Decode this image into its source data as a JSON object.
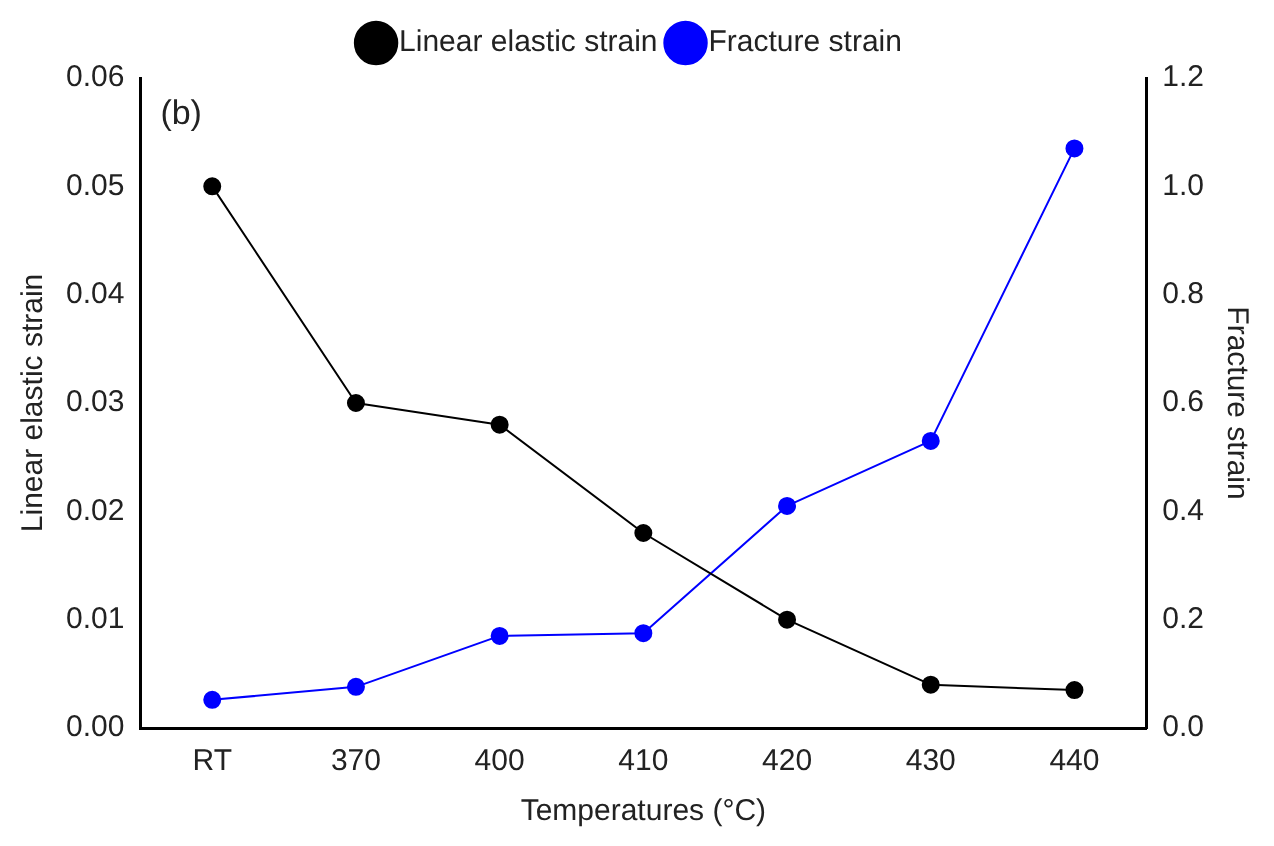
{
  "chart_data": {
    "type": "line",
    "xlabel": "Temperatures (°C)",
    "ylabel": "Linear elastic strain",
    "y2label": "Fracture strain",
    "categories": [
      "RT",
      "370",
      "400",
      "410",
      "420",
      "430",
      "440"
    ],
    "series": [
      {
        "name": "Linear elastic strain",
        "color": "#000000",
        "values": [
          0.05,
          0.03,
          0.028,
          0.018,
          0.01,
          0.004,
          0.0035
        ]
      },
      {
        "name": "Fracture strain",
        "color": "#0000ff",
        "axis": "y2",
        "values": [
          0.052,
          0.076,
          0.17,
          0.175,
          0.41,
          0.53,
          1.07
        ]
      }
    ],
    "ylim": [
      0,
      0.06
    ],
    "yticks": [
      {
        "value": 0,
        "label": "0.00"
      },
      {
        "value": 0.01,
        "label": "0.01"
      },
      {
        "value": 0.02,
        "label": "0.02"
      },
      {
        "value": 0.03,
        "label": "0.03"
      },
      {
        "value": 0.04,
        "label": "0.04"
      },
      {
        "value": 0.05,
        "label": "0.05"
      },
      {
        "value": 0.06,
        "label": "0.06"
      }
    ],
    "y2lim": [
      0,
      1.2
    ],
    "y2ticks": [
      {
        "value": 0,
        "label": "0.0"
      },
      {
        "value": 0.2,
        "label": "0.2"
      },
      {
        "value": 0.4,
        "label": "0.4"
      },
      {
        "value": 0.6,
        "label": "0.6"
      },
      {
        "value": 0.8,
        "label": "0.8"
      },
      {
        "value": 1.0,
        "label": "1.0"
      },
      {
        "value": 1.2,
        "label": "1.2"
      }
    ],
    "annotations": [
      "(b)"
    ],
    "legend": "top",
    "grid": false,
    "marker": "circle",
    "line_style": "solid"
  }
}
